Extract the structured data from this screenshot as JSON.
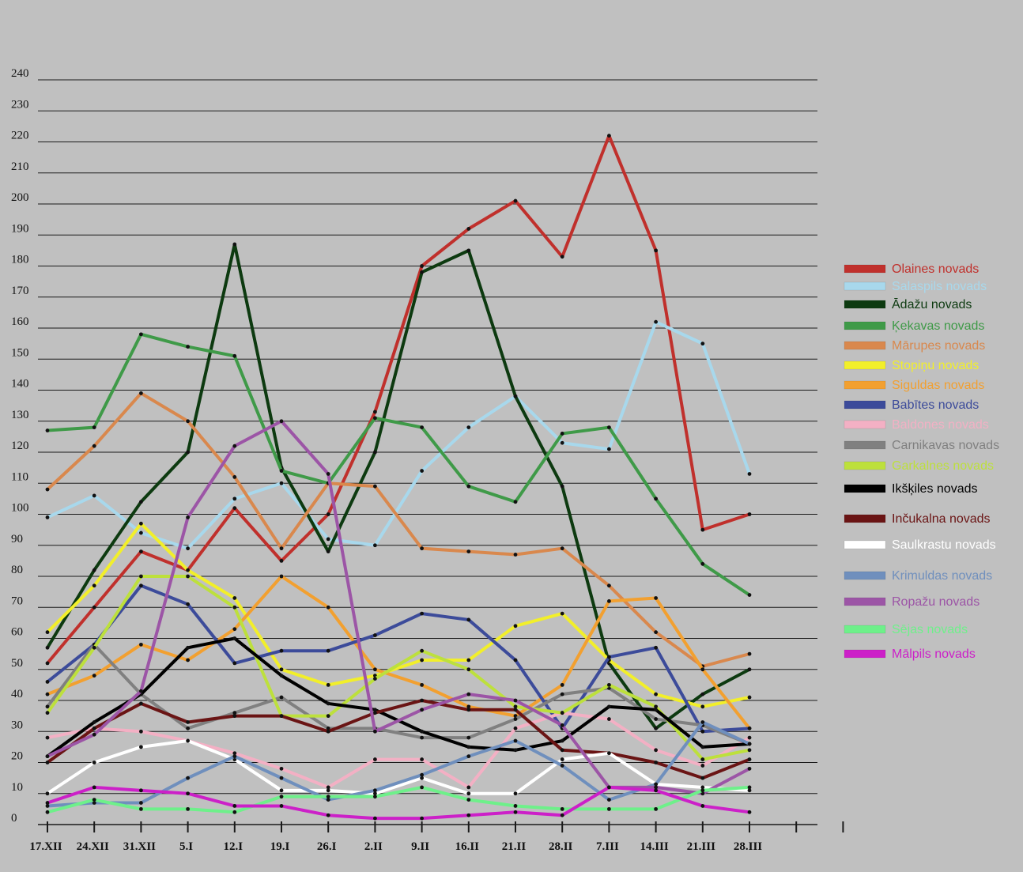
{
  "chart_data": {
    "type": "line",
    "title": "",
    "xlabel": "",
    "ylabel": "",
    "ylim": [
      0,
      240
    ],
    "yticks": [
      0,
      10,
      20,
      30,
      40,
      50,
      60,
      70,
      80,
      90,
      100,
      110,
      120,
      130,
      140,
      150,
      160,
      170,
      180,
      190,
      200,
      210,
      220,
      230,
      240
    ],
    "categories": [
      "17.XII",
      "24.XII",
      "31.XII",
      "5.I",
      "12.I",
      "19.I",
      "26.I",
      "2.II",
      "9.II",
      "16.II",
      "21.II",
      "28.II",
      "7.III",
      "14.III",
      "21.III",
      "28.III"
    ],
    "grid": "horizontal",
    "legend_position": "right",
    "series": [
      {
        "name": "Olaines novads",
        "color": "#c0302c",
        "values": [
          52,
          70,
          88,
          82,
          102,
          85,
          100,
          133,
          180,
          192,
          201,
          183,
          222,
          185,
          95,
          100
        ]
      },
      {
        "name": "Salaspils novads",
        "color": "#a8d8ec",
        "values": [
          99,
          106,
          94,
          89,
          105,
          110,
          92,
          90,
          114,
          128,
          138,
          123,
          121,
          162,
          155,
          113
        ]
      },
      {
        "name": "Ādažu novads",
        "color": "#0d3a10",
        "values": [
          57,
          82,
          104,
          120,
          187,
          115,
          88,
          120,
          178,
          185,
          138,
          109,
          52,
          31,
          42,
          50
        ]
      },
      {
        "name": "Ķekavas novads",
        "color": "#3f9a48",
        "values": [
          127,
          128,
          158,
          154,
          151,
          114,
          110,
          131,
          128,
          109,
          104,
          126,
          128,
          105,
          84,
          74
        ]
      },
      {
        "name": "Mārupes novads",
        "color": "#d9884d",
        "values": [
          108,
          122,
          139,
          130,
          112,
          89,
          110,
          109,
          89,
          88,
          87,
          89,
          77,
          62,
          51,
          55
        ]
      },
      {
        "name": "Stopiņu novads",
        "color": "#f2ef2a",
        "values": [
          62,
          77,
          97,
          82,
          73,
          50,
          45,
          48,
          53,
          53,
          64,
          68,
          53,
          42,
          38,
          41
        ]
      },
      {
        "name": "Siguldas novads",
        "color": "#f2a030",
        "values": [
          42,
          48,
          58,
          53,
          63,
          80,
          70,
          50,
          45,
          38,
          35,
          45,
          72,
          73,
          50,
          31
        ]
      },
      {
        "name": "Babītes novads",
        "color": "#3c4b9a",
        "values": [
          46,
          58,
          77,
          71,
          52,
          56,
          56,
          61,
          68,
          66,
          53,
          31,
          54,
          57,
          30,
          31
        ]
      },
      {
        "name": "Baldones novads",
        "color": "#f3b0c4",
        "values": [
          28,
          31,
          30,
          27,
          23,
          18,
          12,
          21,
          21,
          12,
          31,
          36,
          34,
          24,
          19,
          28
        ]
      },
      {
        "name": "Carnikavas novads",
        "color": "#808080",
        "values": [
          38,
          58,
          42,
          31,
          36,
          41,
          31,
          31,
          28,
          28,
          34,
          42,
          44,
          34,
          32,
          26
        ]
      },
      {
        "name": "Garkalnes novads",
        "color": "#bde03c",
        "values": [
          36,
          57,
          80,
          80,
          70,
          35,
          35,
          47,
          56,
          50,
          38,
          36,
          45,
          38,
          21,
          24
        ]
      },
      {
        "name": "Ikšķiles novads",
        "color": "#000000",
        "values": [
          22,
          33,
          42,
          57,
          60,
          48,
          39,
          37,
          30,
          25,
          24,
          27,
          38,
          37,
          25,
          26
        ]
      },
      {
        "name": "Inčukalna novads",
        "color": "#6a1414",
        "values": [
          20,
          31,
          39,
          33,
          35,
          35,
          30,
          36,
          40,
          37,
          37,
          24,
          23,
          20,
          15,
          21
        ]
      },
      {
        "name": "Saulkrastu novads",
        "color": "#ffffff",
        "values": [
          10,
          20,
          25,
          27,
          21,
          11,
          11,
          10,
          15,
          10,
          10,
          21,
          23,
          13,
          12,
          11
        ]
      },
      {
        "name": "Krimuldas novads",
        "color": "#6f8fbd",
        "values": [
          6,
          7,
          7,
          15,
          22,
          15,
          8,
          11,
          16,
          22,
          27,
          19,
          8,
          13,
          33,
          26
        ]
      },
      {
        "name": "Ropažu novads",
        "color": "#9c55a6",
        "values": [
          22,
          29,
          43,
          99,
          122,
          130,
          113,
          30,
          37,
          42,
          40,
          32,
          12,
          12,
          10,
          18
        ]
      },
      {
        "name": "Sējas novads",
        "color": "#6ef08a",
        "values": [
          4,
          8,
          5,
          5,
          4,
          9,
          9,
          9,
          12,
          8,
          6,
          5,
          5,
          5,
          11,
          12
        ]
      },
      {
        "name": "Mālpils novads",
        "color": "#cc20c8",
        "values": [
          7,
          12,
          11,
          10,
          6,
          6,
          3,
          2,
          2,
          3,
          4,
          3,
          12,
          11,
          6,
          4
        ]
      }
    ]
  }
}
